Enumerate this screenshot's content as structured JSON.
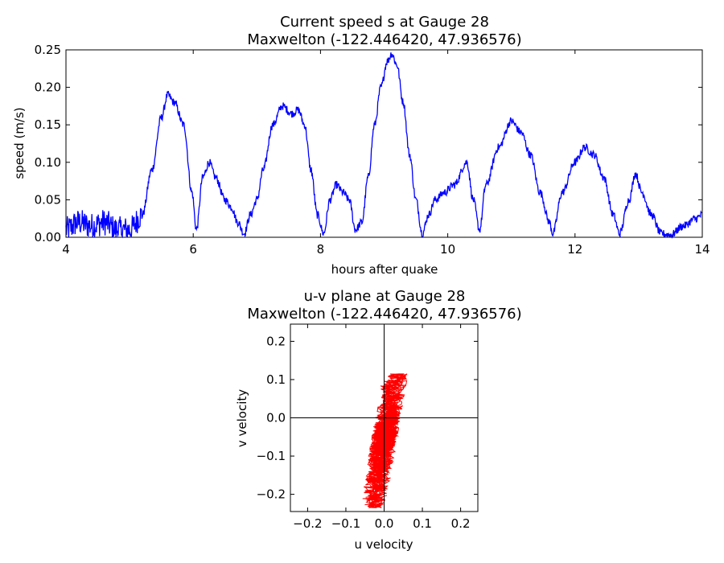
{
  "chart_data": [
    {
      "type": "line",
      "title": "Current speed s at Gauge 28",
      "subtitle": "Maxwelton  (-122.446420, 47.936576)",
      "xlabel": "hours after quake",
      "ylabel": "speed (m/s)",
      "xlim": [
        4,
        14
      ],
      "ylim": [
        0,
        0.25
      ],
      "xticks": [
        4,
        6,
        8,
        10,
        12,
        14
      ],
      "xtick_labels": [
        "4",
        "6",
        "8",
        "10",
        "12",
        "14"
      ],
      "yticks": [
        0,
        0.05,
        0.1,
        0.15,
        0.2,
        0.25
      ],
      "ytick_labels": [
        "0.00",
        "0.05",
        "0.10",
        "0.15",
        "0.20",
        "0.25"
      ],
      "grid": false,
      "color": "#0000ff",
      "series": [
        {
          "x": [
            4.0,
            4.2,
            4.4,
            4.6,
            4.8,
            5.0,
            5.2,
            5.35,
            5.5,
            5.6,
            5.7,
            5.85,
            5.98,
            6.05,
            6.15,
            6.25,
            6.35,
            6.5,
            6.6,
            6.7,
            6.8,
            6.9,
            7.0,
            7.1,
            7.25,
            7.4,
            7.55,
            7.65,
            7.75,
            7.85,
            7.95,
            8.05,
            8.15,
            8.25,
            8.35,
            8.45,
            8.55,
            8.65,
            8.75,
            8.85,
            8.95,
            9.05,
            9.12,
            9.2,
            9.3,
            9.4,
            9.5,
            9.6,
            9.7,
            9.8,
            9.95,
            10.1,
            10.3,
            10.4,
            10.5,
            10.6,
            10.8,
            11.0,
            11.15,
            11.3,
            11.45,
            11.6,
            11.65,
            11.8,
            12.0,
            12.15,
            12.3,
            12.45,
            12.6,
            12.7,
            12.85,
            12.95,
            13.05,
            13.2,
            13.35,
            13.5,
            13.7,
            13.9,
            14.0
          ],
          "y": [
            0.01,
            0.02,
            0.015,
            0.02,
            0.01,
            0.01,
            0.03,
            0.09,
            0.16,
            0.19,
            0.18,
            0.15,
            0.06,
            0.01,
            0.08,
            0.1,
            0.08,
            0.05,
            0.04,
            0.02,
            0.005,
            0.03,
            0.05,
            0.09,
            0.15,
            0.175,
            0.165,
            0.17,
            0.15,
            0.09,
            0.03,
            0.005,
            0.05,
            0.07,
            0.06,
            0.05,
            0.01,
            0.02,
            0.08,
            0.15,
            0.2,
            0.235,
            0.245,
            0.23,
            0.18,
            0.11,
            0.05,
            0.005,
            0.03,
            0.05,
            0.06,
            0.07,
            0.1,
            0.05,
            0.01,
            0.07,
            0.12,
            0.155,
            0.14,
            0.11,
            0.06,
            0.02,
            0.005,
            0.06,
            0.1,
            0.12,
            0.11,
            0.08,
            0.03,
            0.005,
            0.05,
            0.085,
            0.06,
            0.03,
            0.005,
            0.003,
            0.015,
            0.025,
            0.03
          ]
        }
      ]
    },
    {
      "type": "line",
      "title": "u-v plane at Gauge 28",
      "subtitle": "Maxwelton  (-122.446420, 47.936576)",
      "xlabel": "u velocity",
      "ylabel": "v velocity",
      "xlim": [
        -0.245,
        0.245
      ],
      "ylim": [
        -0.245,
        0.245
      ],
      "xticks": [
        -0.2,
        -0.1,
        0.0,
        0.1,
        0.2
      ],
      "xtick_labels": [
        "−0.2",
        "−0.1",
        "0.0",
        "0.1",
        "0.2"
      ],
      "yticks": [
        -0.2,
        -0.1,
        0.0,
        0.1,
        0.2
      ],
      "ytick_labels": [
        "−0.2",
        "−0.1",
        "0.0",
        "0.1",
        "0.2"
      ],
      "reference_lines": {
        "x": 0,
        "y": 0
      },
      "grid": false,
      "color": "#ff0000",
      "u_range": [
        -0.065,
        0.06
      ],
      "v_range": [
        -0.235,
        0.115
      ]
    }
  ]
}
